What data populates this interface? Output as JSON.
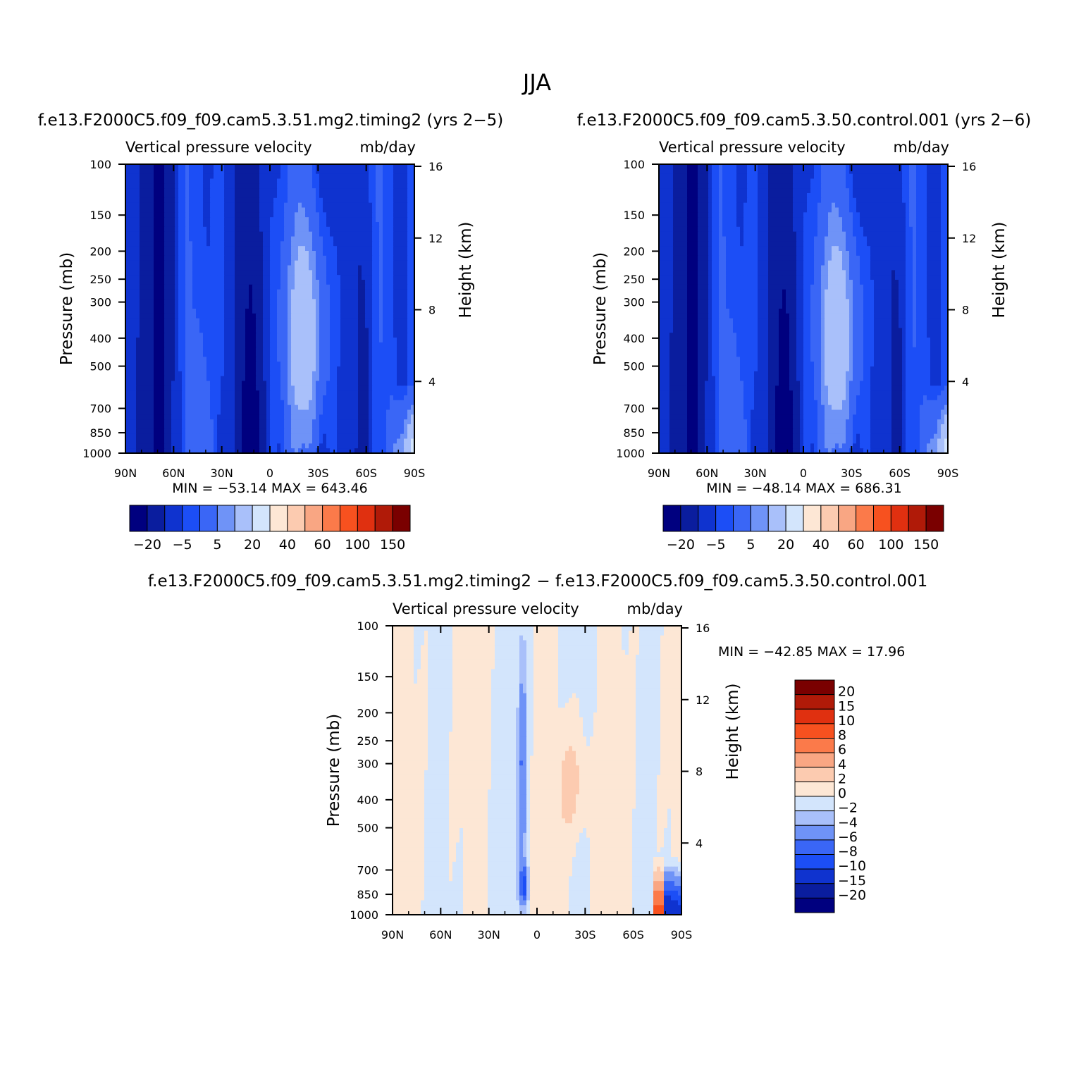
{
  "page_title": "JJA",
  "colors": {
    "neg": [
      "#00007f",
      "#0a1d9e",
      "#0f33cf",
      "#1c4ef6",
      "#3a66f6",
      "#6f93f7",
      "#a9c0fa",
      "#d3e5fc"
    ],
    "pos": [
      "#fde7d5",
      "#fccbb0",
      "#f9a683",
      "#fb7a4a",
      "#f7511f",
      "#e03010",
      "#b01a08",
      "#7a0000"
    ]
  },
  "chart_data": [
    {
      "id": "panel-top-left",
      "type": "heatmap",
      "title": "f.e13.F2000C5.f09_f09.cam5.3.51.mg2.timing2 (yrs 2−5)",
      "subtitle_left": "Vertical pressure velocity",
      "subtitle_right": "mb/day",
      "ylabel": "Pressure (mb)",
      "ylabel_right": "Height (km)",
      "x_ticks": [
        "90N",
        "60N",
        "30N",
        "0",
        "30S",
        "60S",
        "90S"
      ],
      "y_ticks": [
        "100",
        "150",
        "200",
        "250",
        "300",
        "400",
        "500",
        "700",
        "850",
        "1000"
      ],
      "y_right_ticks": [
        "4",
        "8",
        "12",
        "16"
      ],
      "stats_label": "MIN = −53.14   MAX = 643.46",
      "min": -53.14,
      "max": 643.46,
      "colorbar_orientation": "horizontal",
      "colorbar_labels": [
        "−20",
        "−5",
        "5",
        "20",
        "40",
        "60",
        "100",
        "150"
      ]
    },
    {
      "id": "panel-top-right",
      "type": "heatmap",
      "title": "f.e13.F2000C5.f09_f09.cam5.3.50.control.001 (yrs 2−6)",
      "subtitle_left": "Vertical pressure velocity",
      "subtitle_right": "mb/day",
      "ylabel": "Pressure (mb)",
      "ylabel_right": "Height (km)",
      "x_ticks": [
        "90N",
        "60N",
        "30N",
        "0",
        "30S",
        "60S",
        "90S"
      ],
      "y_ticks": [
        "100",
        "150",
        "200",
        "250",
        "300",
        "400",
        "500",
        "700",
        "850",
        "1000"
      ],
      "y_right_ticks": [
        "4",
        "8",
        "12",
        "16"
      ],
      "stats_label": "MIN = −48.14   MAX = 686.31",
      "min": -48.14,
      "max": 686.31,
      "colorbar_orientation": "horizontal",
      "colorbar_labels": [
        "−20",
        "−5",
        "5",
        "20",
        "40",
        "60",
        "100",
        "150"
      ]
    },
    {
      "id": "panel-difference",
      "type": "heatmap",
      "title": "f.e13.F2000C5.f09_f09.cam5.3.51.mg2.timing2 − f.e13.F2000C5.f09_f09.cam5.3.50.control.001",
      "subtitle_left": "Vertical pressure velocity",
      "subtitle_right": "mb/day",
      "ylabel": "Pressure (mb)",
      "ylabel_right": "Height (km)",
      "x_ticks": [
        "90N",
        "60N",
        "30N",
        "0",
        "30S",
        "60S",
        "90S"
      ],
      "y_ticks": [
        "100",
        "150",
        "200",
        "250",
        "300",
        "400",
        "500",
        "700",
        "850",
        "1000"
      ],
      "y_right_ticks": [
        "4",
        "8",
        "12",
        "16"
      ],
      "stats_label": "MIN = −42.85   MAX =   17.96",
      "min": -42.85,
      "max": 17.96,
      "colorbar_orientation": "vertical",
      "colorbar_labels": [
        "20",
        "15",
        "10",
        "8",
        "6",
        "4",
        "2",
        "0",
        "−2",
        "−4",
        "−6",
        "−8",
        "−10",
        "−15",
        "−20"
      ]
    }
  ]
}
